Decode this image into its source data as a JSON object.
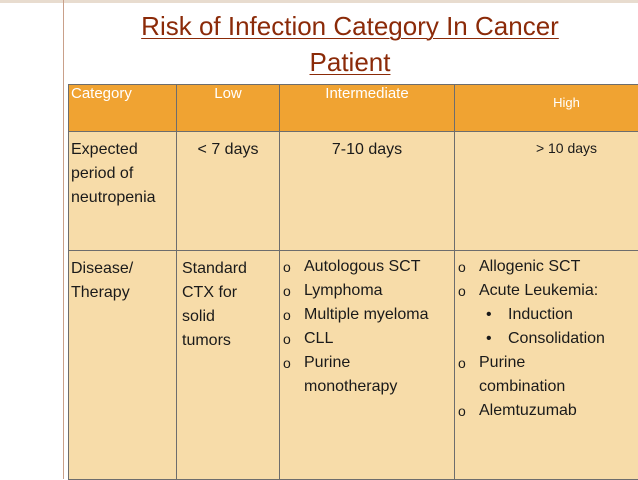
{
  "title": {
    "line1": "Risk of Infection Category In Cancer",
    "line2": "Patient"
  },
  "table": {
    "headers": [
      "Category",
      "Low",
      "Intermediate",
      "High"
    ],
    "rows": [
      {
        "category": [
          "Expected",
          "period of",
          "neutropenia"
        ],
        "low": "< 7 days",
        "intermediate": "7-10 days",
        "high": "> 10 days"
      },
      {
        "category": [
          "Disease/",
          "Therapy"
        ],
        "low": [
          "Standard",
          "CTX for",
          "solid",
          "tumors"
        ],
        "intermediate": [
          "Autologous  SCT",
          "Lymphoma",
          "Multiple myeloma",
          "CLL",
          "Purine monotherapy"
        ],
        "high": {
          "item1": "Allogenic SCT",
          "item2": "Acute Leukemia:",
          "sub": [
            "Induction",
            "Consolidation"
          ],
          "item3": "Purine combination",
          "item4": "Alemtuzumab"
        }
      }
    ]
  },
  "bullets": {
    "outline": "o",
    "dot": "•"
  },
  "colors": {
    "title": "#8b2a08",
    "header_bg": "#f0a332",
    "body_bg": "#f7dca9"
  }
}
